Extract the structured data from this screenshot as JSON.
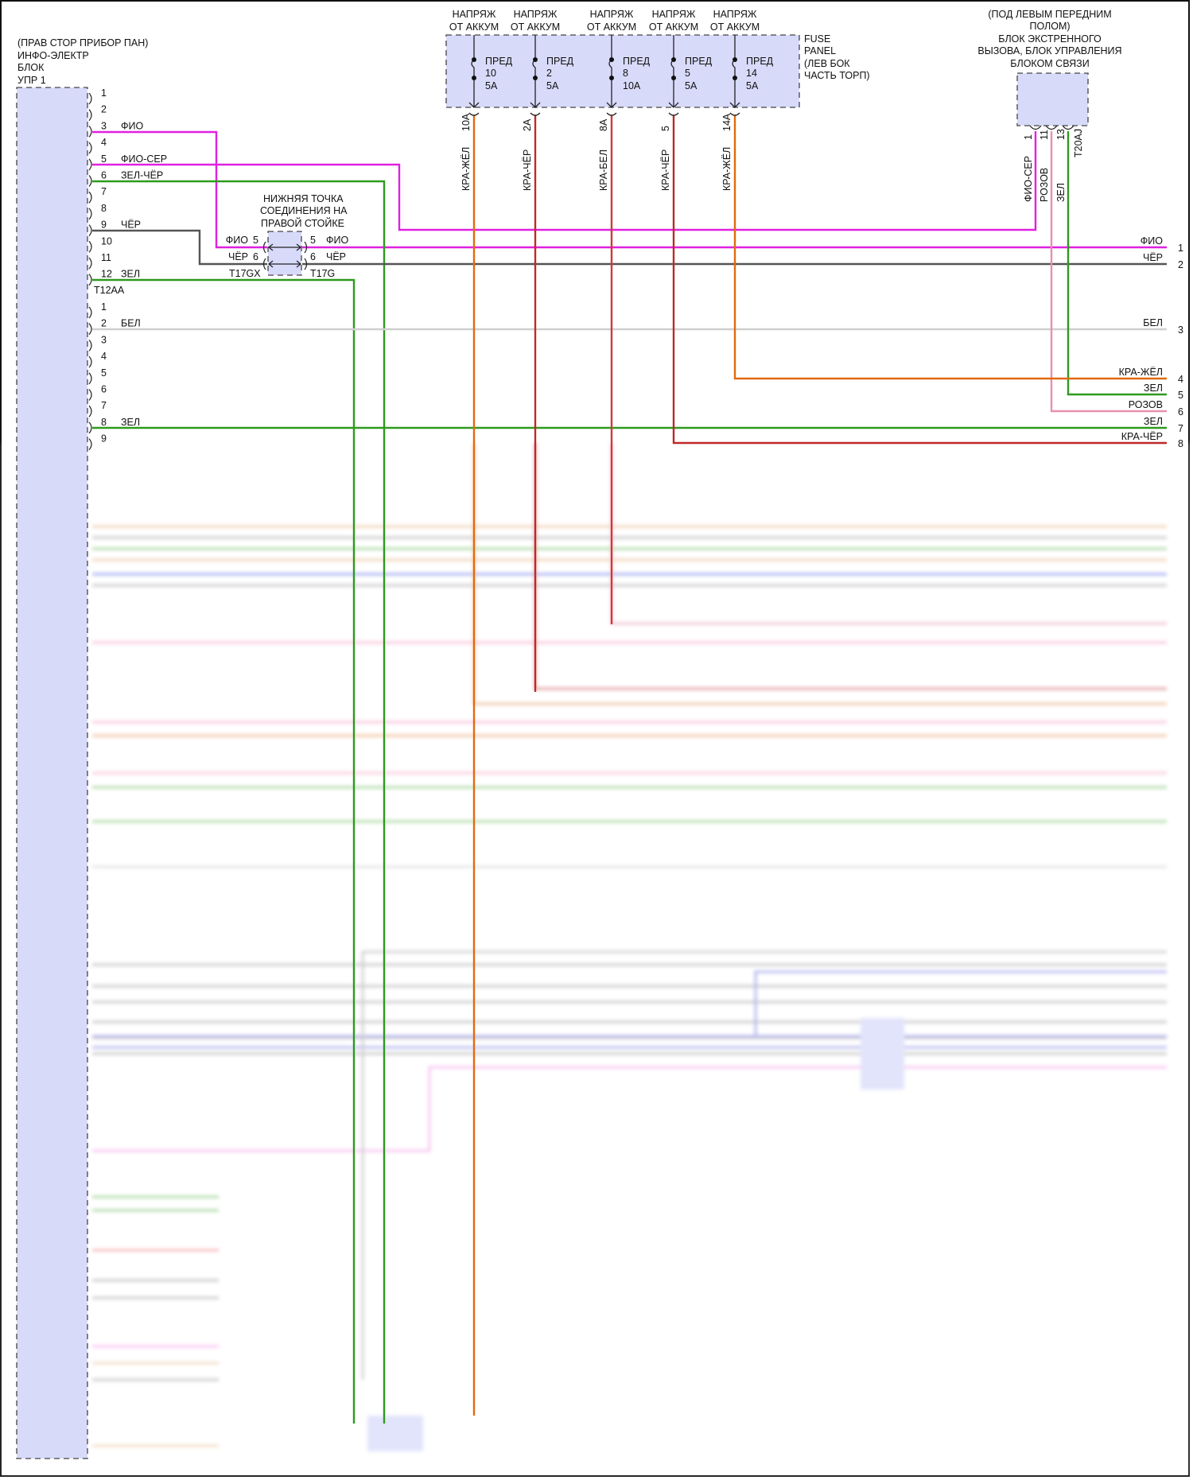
{
  "main_module": {
    "title_lines": [
      "(ПРАВ СТОР ПРИБОР ПАН)",
      "ИНФО-ЭЛЕКТР",
      "БЛОК",
      "УПР 1"
    ],
    "connector_1": {
      "name": "T12AA",
      "pins": [
        "1",
        "2",
        "3",
        "4",
        "5",
        "6",
        "7",
        "8",
        "9",
        "10",
        "11",
        "12"
      ],
      "wires": [
        {
          "pin": "3",
          "color_label": "ФИО",
          "color": "#e020e0"
        },
        {
          "pin": "5",
          "color_label": "ФИО-СЕР",
          "color": "#e020e0"
        },
        {
          "pin": "6",
          "color_label": "ЗЕЛ-ЧЁР",
          "color": "#2e9a1e"
        },
        {
          "pin": "9",
          "color_label": "ЧЁР",
          "color": "#555555"
        },
        {
          "pin": "12",
          "color_label": "ЗЕЛ",
          "color": "#2e9a1e"
        }
      ]
    },
    "connector_2": {
      "pins": [
        "1",
        "2",
        "3",
        "4",
        "5",
        "6",
        "7",
        "8",
        "9"
      ],
      "wires": [
        {
          "pin": "2",
          "color_label": "БЕЛ",
          "color": "#cccccc"
        },
        {
          "pin": "8",
          "color_label": "ЗЕЛ",
          "color": "#2e9a1e"
        }
      ]
    }
  },
  "splice": {
    "title_lines": [
      "НИЖНЯЯ ТОЧКА",
      "СОЕДИНЕНИЯ НА",
      "ПРАВОЙ СТОЙКЕ"
    ],
    "left_connector": "T17GX",
    "right_connector": "T17G",
    "rows": [
      {
        "pin": "5",
        "color_label": "ФИО"
      },
      {
        "pin": "6",
        "color_label": "ЧЁР"
      }
    ]
  },
  "fuse_panel": {
    "title_lines": [
      "FUSE",
      "PANEL",
      "(ЛЕВ БОК",
      "ЧАСТЬ ТОРП)"
    ],
    "fuses": [
      {
        "supply": [
          "НАПРЯЖ",
          "ОТ АККУМ"
        ],
        "label": "ПРЕД",
        "number": "10",
        "rating": "5A",
        "terminal": "10A",
        "wire": "КРА-ЖЁЛ",
        "color": "#e06a10"
      },
      {
        "supply": [
          "НАПРЯЖ",
          "ОТ АККУМ"
        ],
        "label": "ПРЕД",
        "number": "2",
        "rating": "5A",
        "terminal": "2A",
        "wire": "КРА-ЧЁР",
        "color": "#c02828"
      },
      {
        "supply": [
          "НАПРЯЖ",
          "ОТ АККУМ"
        ],
        "label": "ПРЕД",
        "number": "8",
        "rating": "10A",
        "terminal": "8A",
        "wire": "КРА-БЕЛ",
        "color": "#d03838"
      },
      {
        "supply": [
          "НАПРЯЖ",
          "ОТ АККУМ"
        ],
        "label": "ПРЕД",
        "number": "5",
        "rating": "5A",
        "terminal": "5",
        "wire": "КРА-ЧЁР",
        "color": "#c02828"
      },
      {
        "supply": [
          "НАПРЯЖ",
          "ОТ АККУМ"
        ],
        "label": "ПРЕД",
        "number": "14",
        "rating": "5A",
        "terminal": "14A",
        "wire": "КРА-ЖЁЛ",
        "color": "#e06a10"
      }
    ]
  },
  "emergency_module": {
    "title_lines": [
      "(ПОД ЛЕВЫМ ПЕРЕДНИМ",
      "ПОЛОМ)",
      "БЛОК ЭКСТРЕННОГО",
      "ВЫЗОВА, БЛОК УПРАВЛЕНИЯ",
      "БЛОКОМ СВЯЗИ"
    ],
    "connector": "T20AJ",
    "pins": [
      {
        "pin": "1",
        "wire": "ФИО-СЕР",
        "color": "#e020e0"
      },
      {
        "pin": "11",
        "wire": "РОЗОВ",
        "color": "#e890b0"
      },
      {
        "pin": "13",
        "wire": "ЗЕЛ",
        "color": "#2e9a1e"
      }
    ]
  },
  "right_pins": [
    {
      "pin": "1",
      "wire": "ФИО"
    },
    {
      "pin": "2",
      "wire": "ЧЁР"
    },
    {
      "pin": "3",
      "wire": "БЕЛ"
    },
    {
      "pin": "4",
      "wire": "КРА-ЖЁЛ"
    },
    {
      "pin": "5",
      "wire": "ЗЕЛ"
    },
    {
      "pin": "6",
      "wire": "РОЗОВ"
    },
    {
      "pin": "7",
      "wire": "ЗЕЛ"
    },
    {
      "pin": "8",
      "wire": "КРА-ЧЁР"
    }
  ]
}
